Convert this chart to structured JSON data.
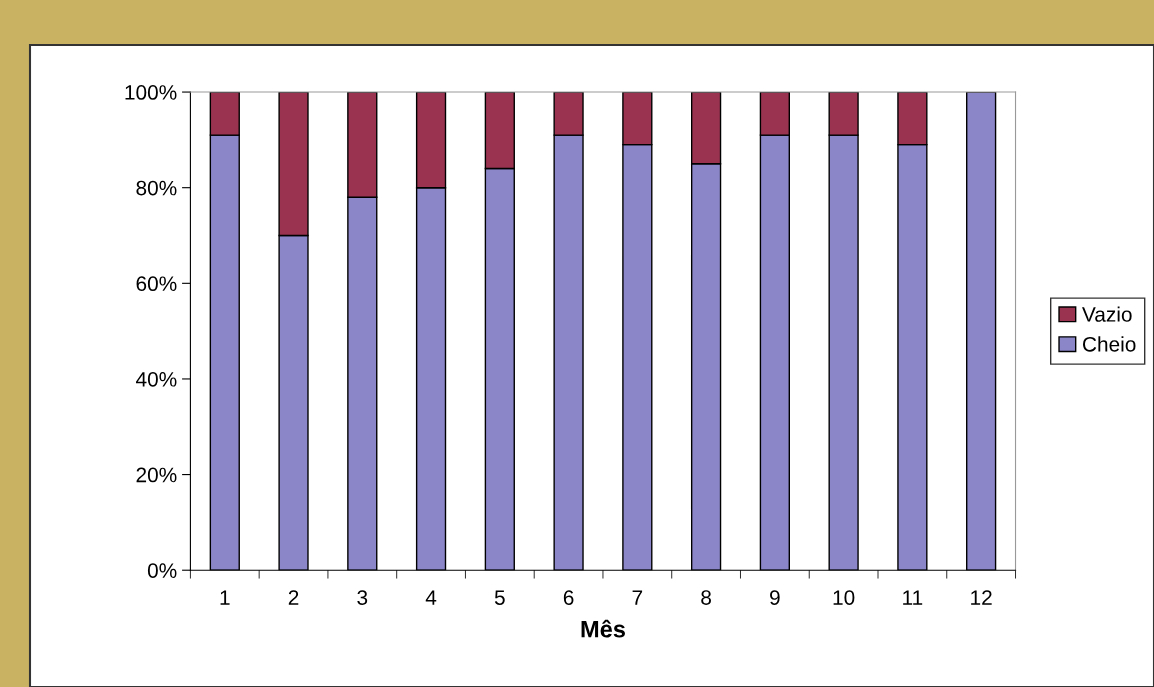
{
  "chart_data": {
    "type": "bar",
    "stacked": true,
    "xlabel": "Mês",
    "categories": [
      "1",
      "2",
      "3",
      "4",
      "5",
      "6",
      "7",
      "8",
      "9",
      "10",
      "11",
      "12"
    ],
    "series": [
      {
        "name": "Cheio",
        "color": "#8b86c8",
        "values": [
          91,
          70,
          78,
          80,
          84,
          91,
          89,
          85,
          91,
          91,
          89,
          100
        ]
      },
      {
        "name": "Vazio",
        "color": "#993350",
        "values": [
          9,
          30,
          22,
          20,
          16,
          9,
          11,
          15,
          9,
          9,
          11,
          null
        ]
      }
    ],
    "ylim": [
      0,
      100
    ],
    "yticks": [
      {
        "value": 0,
        "label": "0%"
      },
      {
        "value": 20,
        "label": "20%"
      },
      {
        "value": 40,
        "label": "40%"
      },
      {
        "value": 60,
        "label": "60%"
      },
      {
        "value": 80,
        "label": "80%"
      },
      {
        "value": 100,
        "label": "100%"
      }
    ],
    "grid": false,
    "legend": "right"
  }
}
